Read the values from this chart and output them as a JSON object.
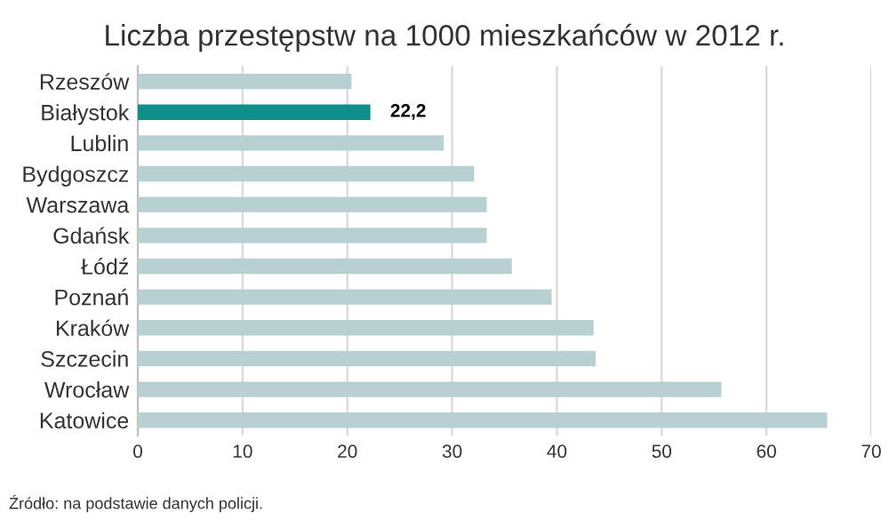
{
  "chart_data": {
    "type": "bar",
    "orientation": "horizontal",
    "title": "Liczba przestępstw na 1000 mieszkańców w 2012 r.",
    "categories": [
      "Rzeszów",
      "Białystok",
      "Lublin",
      "Bydgoszcz",
      "Warszawa",
      "Gdańsk",
      "Łódź",
      "Poznań",
      "Kraków",
      "Szczecin",
      "Wrocław",
      "Katowice"
    ],
    "values": [
      20.4,
      22.2,
      29.2,
      32.1,
      33.3,
      33.3,
      35.7,
      39.5,
      43.5,
      43.7,
      55.7,
      65.8
    ],
    "value_labels": [
      null,
      "22,2",
      null,
      null,
      null,
      null,
      null,
      null,
      null,
      null,
      null,
      null
    ],
    "colors": [
      "#b9d0d3",
      "#0f8f8a",
      "#b9d0d3",
      "#b9d0d3",
      "#b9d0d3",
      "#b9d0d3",
      "#b9d0d3",
      "#b9d0d3",
      "#b9d0d3",
      "#b9d0d3",
      "#b9d0d3",
      "#b9d0d3"
    ],
    "xlim": [
      0,
      70
    ],
    "xticks": [
      0,
      10,
      20,
      30,
      40,
      50,
      60,
      70
    ],
    "grid": "x",
    "annotations": [
      "Źródło: na podstawie danych policji."
    ]
  }
}
